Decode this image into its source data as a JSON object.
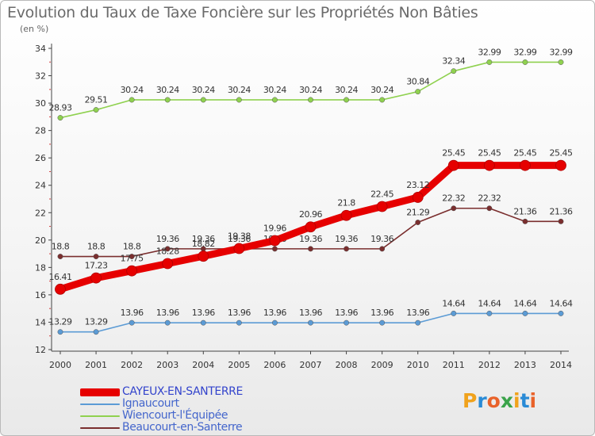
{
  "header": {
    "title": "Evolution du Taux de Taxe Foncière sur les Propriétés Non Bâties",
    "unit": "(en %)"
  },
  "logo": {
    "letters": [
      "P",
      "r",
      "o",
      "x",
      "i",
      "t",
      "i"
    ],
    "colors": [
      "#f0a21c",
      "#2a8bd6",
      "#e9622a",
      "#3aa34a",
      "#f0a21c",
      "#2a8bd6",
      "#e9622a"
    ]
  },
  "chart_data": {
    "type": "line",
    "x": [
      2000,
      2001,
      2002,
      2003,
      2004,
      2005,
      2006,
      2007,
      2008,
      2009,
      2010,
      2011,
      2012,
      2013,
      2014
    ],
    "ylim": [
      12,
      34
    ],
    "yticks": [
      12,
      14,
      16,
      18,
      20,
      22,
      24,
      26,
      28,
      30,
      32,
      34
    ],
    "grid": false,
    "legend_position": "bottom-left",
    "series": [
      {
        "name": "CAYEUX-EN-SANTERRE",
        "color": "#e60000",
        "emphasis": true,
        "values": [
          16.41,
          17.23,
          17.75,
          18.28,
          18.82,
          19.38,
          19.96,
          20.96,
          21.8,
          22.45,
          23.12,
          25.45,
          25.45,
          25.45,
          25.45
        ],
        "labels": [
          "16.41",
          "17.23",
          "17.75",
          "18.28",
          "18.82",
          "19.38",
          "19.96",
          "20.96",
          "21.8",
          "22.45",
          "23.12",
          "25.45",
          "25.45",
          "25.45",
          "25.45"
        ]
      },
      {
        "name": "Ignaucourt",
        "color": "#5b9bd5",
        "emphasis": false,
        "values": [
          13.29,
          13.29,
          13.96,
          13.96,
          13.96,
          13.96,
          13.96,
          13.96,
          13.96,
          13.96,
          13.96,
          14.64,
          14.64,
          14.64,
          14.64
        ],
        "labels": [
          "13.29",
          "13.29",
          "13.96",
          "13.96",
          "13.96",
          "13.96",
          "13.96",
          "13.96",
          "13.96",
          "13.96",
          "13.96",
          "14.64",
          "14.64",
          "14.64",
          "14.64"
        ]
      },
      {
        "name": "Wiencourt-l'Équipée",
        "color": "#8fd14f",
        "emphasis": false,
        "values": [
          28.93,
          29.51,
          30.24,
          30.24,
          30.24,
          30.24,
          30.24,
          30.24,
          30.24,
          30.24,
          30.84,
          32.34,
          32.99,
          32.99,
          32.99
        ],
        "labels": [
          "28.93",
          "29.51",
          "30.24",
          "30.24",
          "30.24",
          "30.24",
          "30.24",
          "30.24",
          "30.24",
          "30.24",
          "30.84",
          "32.34",
          "32.99",
          "32.99",
          "32.99"
        ]
      },
      {
        "name": "Beaucourt-en-Santerre",
        "color": "#7a2e2e",
        "emphasis": false,
        "values": [
          18.8,
          18.8,
          18.8,
          19.36,
          19.36,
          19.36,
          19.36,
          19.36,
          19.36,
          19.36,
          21.29,
          22.32,
          22.32,
          21.36,
          21.36
        ],
        "labels": [
          "18.8",
          "18.8",
          "18.8",
          "19.36",
          "19.36",
          "19.36",
          "19.36",
          "19.36",
          "19.36",
          "19.36",
          "21.29",
          "22.32",
          "22.32",
          "21.36",
          "21.36"
        ]
      }
    ]
  }
}
